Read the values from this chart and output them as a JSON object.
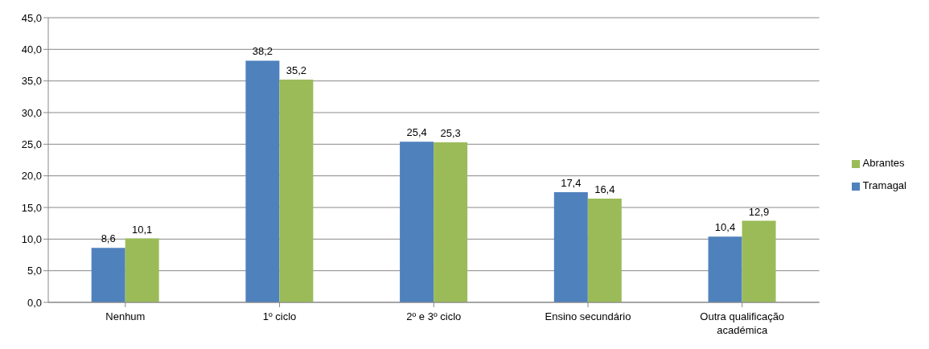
{
  "chart_data": {
    "type": "bar",
    "categories": [
      "Nenhum",
      "1º ciclo",
      "2º e 3º ciclo",
      "Ensino secundário",
      "Outra qualificação académica"
    ],
    "series": [
      {
        "name": "Tramagal",
        "color": "#4f81bd",
        "values": [
          8.6,
          38.2,
          25.4,
          17.4,
          10.4
        ],
        "value_labels": [
          "8,6",
          "38,2",
          "25,4",
          "17,4",
          "10,4"
        ]
      },
      {
        "name": "Abrantes",
        "color": "#9bbb59",
        "values": [
          10.1,
          35.2,
          25.3,
          16.4,
          12.9
        ],
        "value_labels": [
          "10,1",
          "35,2",
          "25,3",
          "16,4",
          "12,9"
        ]
      }
    ],
    "ylim": [
      0,
      45
    ],
    "yticks": [
      {
        "value": 0,
        "label": "0,0"
      },
      {
        "value": 5,
        "label": "5,0"
      },
      {
        "value": 10,
        "label": "10,0"
      },
      {
        "value": 15,
        "label": "15,0"
      },
      {
        "value": 20,
        "label": "20,0"
      },
      {
        "value": 25,
        "label": "25,0"
      },
      {
        "value": 30,
        "label": "30,0"
      },
      {
        "value": 35,
        "label": "35,0"
      },
      {
        "value": 40,
        "label": "40,0"
      },
      {
        "value": 45,
        "label": "45,0"
      }
    ],
    "grid": "y",
    "legend": "right"
  }
}
